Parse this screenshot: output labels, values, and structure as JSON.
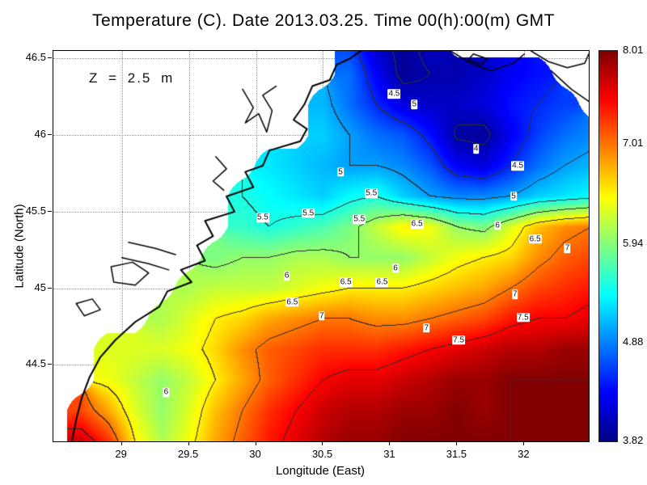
{
  "title": "Temperature (C). Date 2013.03.25. Time 00(h):00(m) GMT",
  "annotation": "Z = 2.5 m",
  "axes": {
    "xlabel": "Longitude (East)",
    "ylabel": "Latitude (North)",
    "xticks": [
      29,
      29.5,
      30,
      30.5,
      31,
      31.5,
      32
    ],
    "xtick_labels": [
      "29",
      "29.5",
      "30",
      "30.5",
      "31",
      "31.5",
      "32"
    ],
    "yticks": [
      44.5,
      45,
      45.5,
      46,
      46.5
    ],
    "ytick_labels": [
      "44.5",
      "45",
      "45.5",
      "46",
      "46.5"
    ]
  },
  "colorbar": {
    "min": 3.82,
    "max": 8.01,
    "tick_values": [
      8.01,
      7.01,
      5.94,
      4.88,
      3.82
    ],
    "tick_labels": [
      "8.01",
      "7.01",
      "5.94",
      "4.88",
      "3.82"
    ],
    "colors_top_to_bottom": [
      "#7f0000",
      "#ff0000",
      "#ffff00",
      "#00ffff",
      "#0000ff",
      "#000083"
    ]
  },
  "chart_data": {
    "type": "heatmap",
    "title": "Temperature (C). Date 2013.03.25. Time 00(h):00(m) GMT",
    "xlabel": "Longitude (East)",
    "ylabel": "Latitude (North)",
    "units": "C",
    "depth_m": 2.5,
    "lon_view": [
      28.49,
      32.48
    ],
    "lat_view": [
      44.0,
      46.55
    ],
    "grid_origin": {
      "lon": 28.5,
      "lat": 46.6
    },
    "grid_step": 0.2,
    "contour_interval": 0.5,
    "colormap": {
      "name": "jet",
      "stops": [
        [
          0,
          "#000083"
        ],
        [
          0.125,
          "#0000ff"
        ],
        [
          0.375,
          "#00ffff"
        ],
        [
          0.625,
          "#ffff00"
        ],
        [
          0.875,
          "#ff0000"
        ],
        [
          1,
          "#800000"
        ]
      ]
    },
    "values": [
      [
        null,
        null,
        null,
        null,
        null,
        null,
        null,
        null,
        null,
        null,
        null,
        4.6,
        4.1,
        3.9,
        4.1,
        null,
        null,
        null,
        null,
        null,
        null
      ],
      [
        null,
        null,
        null,
        null,
        null,
        null,
        null,
        null,
        null,
        null,
        null,
        4.8,
        4.3,
        3.9,
        4.0,
        4.0,
        4.1,
        4.3,
        4.4,
        null,
        null
      ],
      [
        null,
        null,
        null,
        null,
        null,
        null,
        null,
        null,
        null,
        null,
        5.1,
        4.8,
        4.5,
        4.2,
        4.1,
        4.1,
        4.2,
        4.4,
        4.5,
        4.6,
        null
      ],
      [
        null,
        null,
        null,
        null,
        null,
        null,
        null,
        null,
        null,
        null,
        5.2,
        5.0,
        4.8,
        4.7,
        4.4,
        3.95,
        3.9,
        4.3,
        4.6,
        4.8,
        4.9
      ],
      [
        null,
        null,
        null,
        null,
        null,
        null,
        null,
        null,
        5.3,
        5.2,
        5.1,
        5.0,
        5.0,
        4.9,
        4.7,
        4.3,
        4.2,
        4.5,
        4.8,
        5.0,
        5.1
      ],
      [
        null,
        null,
        null,
        null,
        null,
        null,
        null,
        5.5,
        5.4,
        5.3,
        5.2,
        5.4,
        5.5,
        5.2,
        5.0,
        4.9,
        4.9,
        5.0,
        5.2,
        5.3,
        5.4
      ],
      [
        null,
        null,
        null,
        null,
        null,
        null,
        null,
        5.6,
        5.5,
        5.6,
        5.7,
        5.9,
        6.2,
        6.5,
        6.4,
        6.0,
        5.9,
        6.3,
        6.7,
        6.9,
        7.0
      ],
      [
        null,
        null,
        null,
        null,
        null,
        null,
        5.9,
        6.0,
        6.0,
        6.1,
        6.1,
        6.0,
        6.0,
        6.0,
        6.2,
        6.4,
        6.5,
        6.6,
        6.9,
        7.1,
        7.2
      ],
      [
        null,
        null,
        null,
        null,
        null,
        6.1,
        6.2,
        6.2,
        6.2,
        6.3,
        6.4,
        6.5,
        6.5,
        6.5,
        6.6,
        6.7,
        6.8,
        7.0,
        7.2,
        7.3,
        7.4
      ],
      [
        null,
        null,
        null,
        null,
        6.1,
        6.3,
        6.5,
        6.6,
        6.8,
        6.9,
        7.0,
        7.0,
        6.9,
        6.9,
        7.0,
        7.1,
        7.2,
        7.4,
        7.5,
        7.5,
        7.6
      ],
      [
        null,
        null,
        6.3,
        6.3,
        6.3,
        6.4,
        6.6,
        6.9,
        7.1,
        7.2,
        7.3,
        7.3,
        7.3,
        7.4,
        7.5,
        7.6,
        7.7,
        7.8,
        7.8,
        7.9,
        7.9
      ],
      [
        null,
        null,
        6.4,
        6.2,
        6.0,
        6.2,
        6.5,
        6.8,
        7.1,
        7.3,
        7.5,
        7.6,
        7.6,
        7.7,
        7.8,
        7.9,
        7.9,
        8.0,
        8.0,
        8.0,
        8.0
      ],
      [
        null,
        7.2,
        6.8,
        6.3,
        6.0,
        6.3,
        6.7,
        7.0,
        7.3,
        7.5,
        7.7,
        7.8,
        7.8,
        7.9,
        7.9,
        8.0,
        7.9,
        8.0,
        8.0,
        8.0,
        8.0
      ],
      [
        null,
        7.7,
        7.3,
        6.5,
        6.1,
        6.4,
        6.8,
        7.1,
        7.4,
        7.6,
        7.8,
        7.9,
        7.9,
        8.0,
        8.0,
        8.0,
        8.0,
        8.0,
        8.0,
        8.0,
        8.0
      ]
    ],
    "contour_labels": [
      {
        "lon": 31.03,
        "lat": 46.27,
        "text": "4.5"
      },
      {
        "lon": 31.18,
        "lat": 46.2,
        "text": "5"
      },
      {
        "lon": 31.64,
        "lat": 45.91,
        "text": "4"
      },
      {
        "lon": 31.95,
        "lat": 45.8,
        "text": "4.5"
      },
      {
        "lon": 30.63,
        "lat": 45.76,
        "text": "5"
      },
      {
        "lon": 31.92,
        "lat": 45.6,
        "text": "5"
      },
      {
        "lon": 30.86,
        "lat": 45.62,
        "text": "5.5"
      },
      {
        "lon": 30.39,
        "lat": 45.49,
        "text": "5.5"
      },
      {
        "lon": 30.05,
        "lat": 45.46,
        "text": "5.5"
      },
      {
        "lon": 30.77,
        "lat": 45.45,
        "text": "5.5"
      },
      {
        "lon": 31.2,
        "lat": 45.42,
        "text": "6.5"
      },
      {
        "lon": 31.8,
        "lat": 45.41,
        "text": "6"
      },
      {
        "lon": 32.08,
        "lat": 45.32,
        "text": "6.5"
      },
      {
        "lon": 32.32,
        "lat": 45.26,
        "text": "7"
      },
      {
        "lon": 31.04,
        "lat": 45.13,
        "text": "6"
      },
      {
        "lon": 30.23,
        "lat": 45.08,
        "text": "6"
      },
      {
        "lon": 30.67,
        "lat": 45.04,
        "text": "6.5"
      },
      {
        "lon": 30.94,
        "lat": 45.04,
        "text": "6.5"
      },
      {
        "lon": 31.93,
        "lat": 44.96,
        "text": "7"
      },
      {
        "lon": 30.27,
        "lat": 44.91,
        "text": "6.5"
      },
      {
        "lon": 30.49,
        "lat": 44.82,
        "text": "7"
      },
      {
        "lon": 31.99,
        "lat": 44.81,
        "text": "7.5"
      },
      {
        "lon": 31.27,
        "lat": 44.74,
        "text": "7"
      },
      {
        "lon": 31.51,
        "lat": 44.66,
        "text": "7.5"
      },
      {
        "lon": 29.33,
        "lat": 44.32,
        "text": "6"
      }
    ],
    "coastlines": [
      {
        "width": 2,
        "closed": false,
        "points": [
          [
            30.78,
            46.55
          ],
          [
            30.7,
            46.5
          ],
          [
            30.6,
            46.46
          ],
          [
            30.55,
            46.36
          ],
          [
            30.42,
            46.32
          ],
          [
            30.36,
            46.2
          ],
          [
            30.28,
            46.1
          ],
          [
            30.38,
            46.04
          ],
          [
            30.33,
            45.96
          ],
          [
            30.1,
            45.9
          ],
          [
            30.05,
            45.8
          ],
          [
            29.92,
            45.76
          ],
          [
            29.98,
            45.66
          ],
          [
            29.78,
            45.6
          ],
          [
            29.84,
            45.5
          ],
          [
            29.62,
            45.44
          ],
          [
            29.68,
            45.34
          ],
          [
            29.56,
            45.28
          ],
          [
            29.62,
            45.18
          ],
          [
            29.44,
            45.12
          ],
          [
            29.52,
            45.04
          ],
          [
            29.34,
            44.98
          ],
          [
            29.28,
            44.88
          ],
          [
            29.1,
            44.78
          ],
          [
            28.95,
            44.66
          ],
          [
            28.84,
            44.55
          ],
          [
            28.76,
            44.42
          ],
          [
            28.7,
            44.28
          ],
          [
            28.66,
            44.14
          ],
          [
            28.63,
            44.01
          ]
        ]
      },
      {
        "width": 1.5,
        "closed": false,
        "points": [
          [
            29.9,
            46.3
          ],
          [
            29.98,
            46.18
          ],
          [
            29.92,
            46.08
          ],
          [
            30.02,
            46.14
          ],
          [
            30.08,
            46.02
          ],
          [
            30.12,
            46.16
          ],
          [
            30.05,
            46.26
          ],
          [
            30.15,
            46.32
          ]
        ]
      },
      {
        "width": 1.5,
        "closed": false,
        "points": [
          [
            29.7,
            45.86
          ],
          [
            29.78,
            45.78
          ],
          [
            29.68,
            45.7
          ],
          [
            29.76,
            45.64
          ]
        ]
      },
      {
        "width": 1.5,
        "closed": false,
        "points": [
          [
            29.05,
            45.3
          ],
          [
            29.25,
            45.26
          ],
          [
            29.4,
            45.22
          ]
        ]
      },
      {
        "width": 1.5,
        "closed": false,
        "points": [
          [
            29.0,
            45.2
          ],
          [
            29.2,
            45.16
          ],
          [
            29.35,
            45.12
          ]
        ]
      },
      {
        "width": 1.5,
        "closed": true,
        "points": [
          [
            28.92,
            45.14
          ],
          [
            29.08,
            45.17
          ],
          [
            29.2,
            45.1
          ],
          [
            29.1,
            45.02
          ],
          [
            28.94,
            45.04
          ]
        ]
      },
      {
        "width": 1.5,
        "closed": true,
        "points": [
          [
            28.66,
            44.9
          ],
          [
            28.78,
            44.93
          ],
          [
            28.84,
            44.86
          ],
          [
            28.72,
            44.82
          ]
        ]
      },
      {
        "width": 1.5,
        "closed": false,
        "points": [
          [
            31.45,
            46.55
          ],
          [
            31.6,
            46.47
          ],
          [
            31.75,
            46.42
          ],
          [
            31.92,
            46.47
          ],
          [
            32.0,
            46.53
          ]
        ]
      },
      {
        "width": 1.5,
        "closed": false,
        "points": [
          [
            32.05,
            46.55
          ],
          [
            32.18,
            46.48
          ],
          [
            32.32,
            46.44
          ],
          [
            32.45,
            46.47
          ],
          [
            32.48,
            46.53
          ]
        ]
      },
      {
        "width": 1.5,
        "closed": true,
        "points": [
          [
            31.62,
            46.53
          ],
          [
            31.72,
            46.5
          ],
          [
            31.68,
            46.46
          ],
          [
            31.58,
            46.49
          ]
        ]
      },
      {
        "width": 1.5,
        "closed": false,
        "points": [
          [
            32.2,
            46.42
          ],
          [
            32.35,
            46.3
          ],
          [
            32.48,
            46.22
          ]
        ]
      }
    ]
  }
}
